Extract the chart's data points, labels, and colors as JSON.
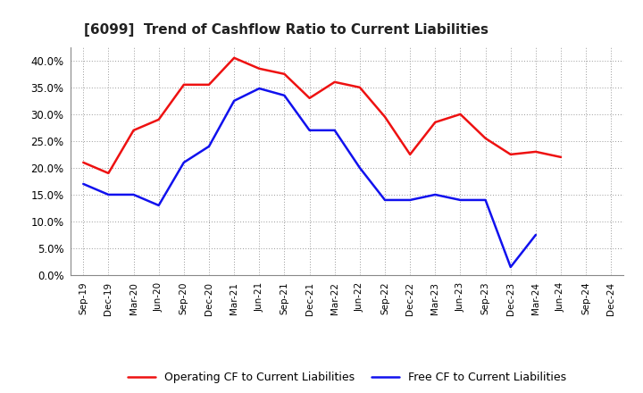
{
  "title": "[6099]  Trend of Cashflow Ratio to Current Liabilities",
  "x_labels": [
    "Sep-19",
    "Dec-19",
    "Mar-20",
    "Jun-20",
    "Sep-20",
    "Dec-20",
    "Mar-21",
    "Jun-21",
    "Sep-21",
    "Dec-21",
    "Mar-22",
    "Jun-22",
    "Sep-22",
    "Dec-22",
    "Mar-23",
    "Jun-23",
    "Sep-23",
    "Dec-23",
    "Mar-24",
    "Jun-24",
    "Sep-24",
    "Dec-24"
  ],
  "operating_cf": [
    0.21,
    0.19,
    0.27,
    0.29,
    0.355,
    0.355,
    0.405,
    0.385,
    0.375,
    0.33,
    0.36,
    0.35,
    0.295,
    0.225,
    0.285,
    0.3,
    0.255,
    0.225,
    0.23,
    0.22,
    null,
    null
  ],
  "free_cf": [
    0.17,
    0.15,
    0.15,
    0.13,
    0.21,
    0.24,
    0.325,
    0.348,
    0.335,
    0.27,
    0.27,
    0.2,
    0.14,
    0.14,
    0.15,
    0.14,
    0.14,
    0.015,
    0.075,
    null,
    null,
    null
  ],
  "operating_color": "#EE1111",
  "free_color": "#1111EE",
  "ylim": [
    0.0,
    0.425
  ],
  "yticks": [
    0.0,
    0.05,
    0.1,
    0.15,
    0.2,
    0.25,
    0.3,
    0.35,
    0.4
  ],
  "legend_op": "Operating CF to Current Liabilities",
  "legend_free": "Free CF to Current Liabilities",
  "background_color": "#FFFFFF",
  "plot_bg_color": "#FFFFFF",
  "grid_color": "#999999"
}
